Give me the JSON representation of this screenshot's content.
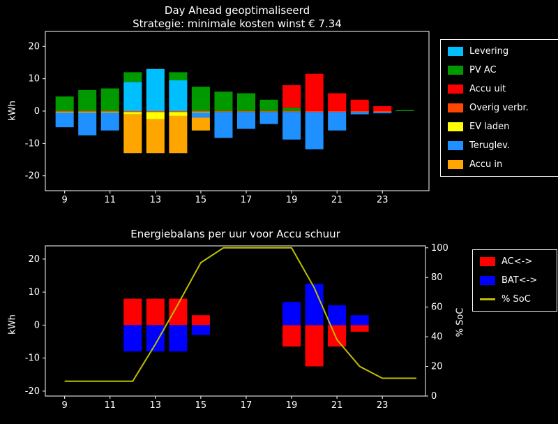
{
  "colors": {
    "background": "#000000",
    "foreground": "#ffffff"
  },
  "chart_data": [
    {
      "type": "bar",
      "stacked": true,
      "title": "Day Ahead geoptimaliseerd",
      "subtitle": "Strategie: minimale kosten winst € 7.34",
      "ylabel": "kWh",
      "x": [
        9,
        10,
        11,
        12,
        13,
        14,
        15,
        16,
        17,
        18,
        19,
        20,
        21,
        22,
        23,
        24
      ],
      "xticks": [
        9,
        11,
        13,
        15,
        17,
        19,
        21,
        23
      ],
      "yticks": [
        -20,
        -10,
        0,
        10,
        20
      ],
      "xlim": [
        8.15,
        25.05
      ],
      "ylim": [
        -24.6,
        24.6
      ],
      "bar_width": 0.8,
      "legend_position": "upper right",
      "series": [
        {
          "name": "Levering",
          "color": "#00bfff",
          "values": [
            0,
            0,
            0,
            9,
            13,
            9.5,
            0,
            0,
            0,
            0,
            0,
            0,
            0,
            0,
            0,
            0
          ]
        },
        {
          "name": "PV AC",
          "color": "#009900",
          "values": [
            4.5,
            6.5,
            7,
            3,
            0,
            2.5,
            7.5,
            6,
            5.5,
            3.5,
            1,
            0,
            0,
            0,
            0,
            0.3
          ]
        },
        {
          "name": "Accu uit",
          "color": "#ff0000",
          "values": [
            0,
            0,
            0,
            0,
            0,
            0,
            0,
            0,
            0,
            0,
            7,
            11.5,
            5.5,
            3.5,
            1.5,
            0
          ]
        },
        {
          "name": "Overig verbr.",
          "color": "#ff4500",
          "values": [
            -0.3,
            -0.3,
            -0.3,
            -0.3,
            -0.3,
            -0.3,
            -0.3,
            -0.3,
            -0.3,
            -0.3,
            -0.3,
            -0.3,
            -0.3,
            -0.3,
            -0.3,
            0
          ]
        },
        {
          "name": "EV laden",
          "color": "#ffff00",
          "values": [
            -0.2,
            -0.2,
            -0.2,
            -0.7,
            -2.2,
            -1.2,
            -0.2,
            0,
            0,
            0,
            0,
            0,
            0,
            0,
            0,
            0
          ]
        },
        {
          "name": "Teruglev.",
          "color": "#1e90ff",
          "values": [
            -4.5,
            -7,
            -5.5,
            0,
            0,
            0,
            -1.5,
            -8,
            -5.2,
            -3.7,
            -8.5,
            -11.5,
            -5.7,
            -0.7,
            -0.4,
            0
          ]
        },
        {
          "name": "Accu in",
          "color": "#ffa500",
          "values": [
            0,
            0,
            0,
            -12,
            -10.5,
            -11.5,
            -4,
            0,
            0,
            0,
            0,
            0,
            0,
            0,
            0,
            0
          ]
        }
      ]
    },
    {
      "type": "bar+line",
      "stacked": true,
      "title": "Energiebalans per uur voor Accu schuur",
      "ylabel": "kWh",
      "ylabel_right": "% SoC",
      "x": [
        9,
        10,
        11,
        12,
        13,
        14,
        15,
        16,
        17,
        18,
        19,
        20,
        21,
        22,
        23,
        24
      ],
      "xticks": [
        9,
        11,
        13,
        15,
        17,
        19,
        21,
        23
      ],
      "yticks": [
        -20,
        -10,
        0,
        10,
        20
      ],
      "yticks_right": [
        0,
        20,
        40,
        60,
        80,
        100
      ],
      "xlim": [
        8.15,
        24.9
      ],
      "ylim": [
        -21.5,
        24
      ],
      "ylim_right": [
        0,
        101.3
      ],
      "bar_width": 0.8,
      "legend_position": "upper right",
      "series": [
        {
          "name": "AC<->",
          "type": "bar",
          "color": "#ff0000",
          "values": [
            0,
            0,
            0,
            8,
            8,
            8,
            3,
            0,
            0,
            0,
            -6.5,
            -12.5,
            -6.5,
            -2,
            0,
            0
          ]
        },
        {
          "name": "BAT<->",
          "type": "bar",
          "color": "#0000ff",
          "values": [
            0,
            0,
            0,
            -8,
            -8,
            -8,
            -3,
            0,
            0,
            0,
            7,
            12.5,
            6,
            3,
            0,
            0
          ]
        },
        {
          "name": "% SoC",
          "type": "line",
          "color": "#bfbf00",
          "axis": "right",
          "x": [
            9,
            10,
            11,
            12,
            13,
            14,
            15,
            16,
            17,
            18,
            19,
            20,
            21,
            22,
            23,
            24.5
          ],
          "values": [
            10,
            10,
            10,
            10,
            35,
            62,
            90,
            100,
            100,
            100,
            100,
            73,
            38,
            20,
            12,
            12
          ]
        }
      ]
    }
  ]
}
